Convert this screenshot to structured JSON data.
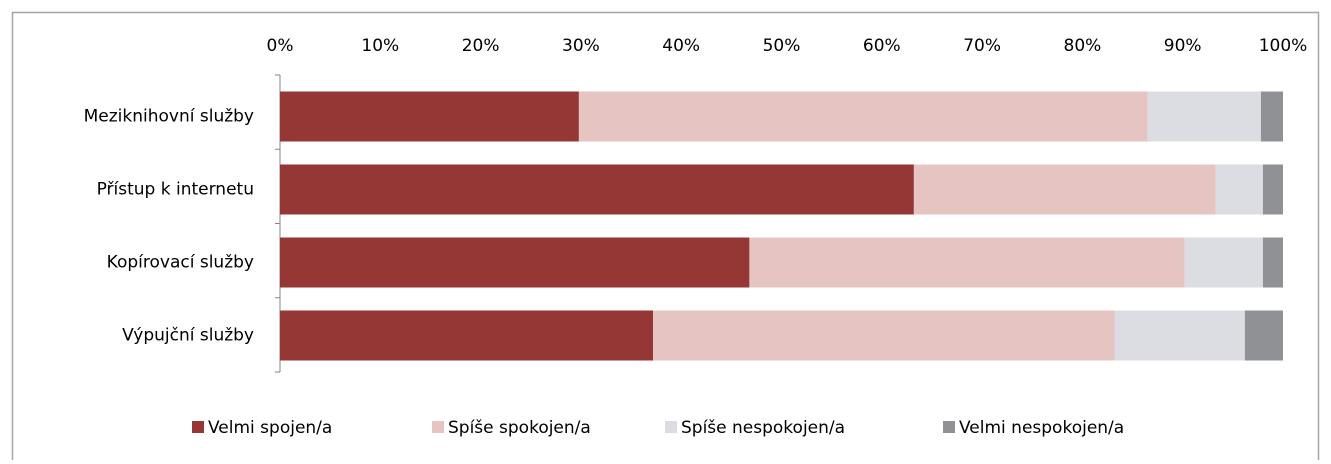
{
  "chart_data": {
    "type": "stacked_barh",
    "categories": [
      "Meziknihovní služby",
      "Přístup k internetu",
      "Kopírovací služby",
      "Výpujční služby"
    ],
    "series": [
      {
        "name": "Velmi spojen/a",
        "color": "#953735",
        "values": [
          29.8,
          63.2,
          46.8,
          37.2
        ]
      },
      {
        "name": "Spíše spokojen/a",
        "color": "#e6c4c2",
        "values": [
          56.7,
          30.1,
          43.4,
          46.0
        ]
      },
      {
        "name": "Spíše nespokojen/a",
        "color": "#dcdde2",
        "values": [
          11.3,
          4.7,
          7.8,
          13.0
        ]
      },
      {
        "name": "Velmi nespokojen/a",
        "color": "#8f9194",
        "values": [
          2.2,
          2.0,
          2.0,
          3.8
        ]
      }
    ],
    "xlim": [
      0,
      100
    ],
    "xticks": [
      {
        "value": 0,
        "label": "0%"
      },
      {
        "value": 10,
        "label": "10%"
      },
      {
        "value": 20,
        "label": "20%"
      },
      {
        "value": 30,
        "label": "30%"
      },
      {
        "value": 40,
        "label": "40%"
      },
      {
        "value": 50,
        "label": "50%"
      },
      {
        "value": 60,
        "label": "60%"
      },
      {
        "value": 70,
        "label": "70%"
      },
      {
        "value": 80,
        "label": "80%"
      },
      {
        "value": 90,
        "label": "90%"
      },
      {
        "value": 100,
        "label": "100%"
      }
    ],
    "legend": "bottom"
  }
}
